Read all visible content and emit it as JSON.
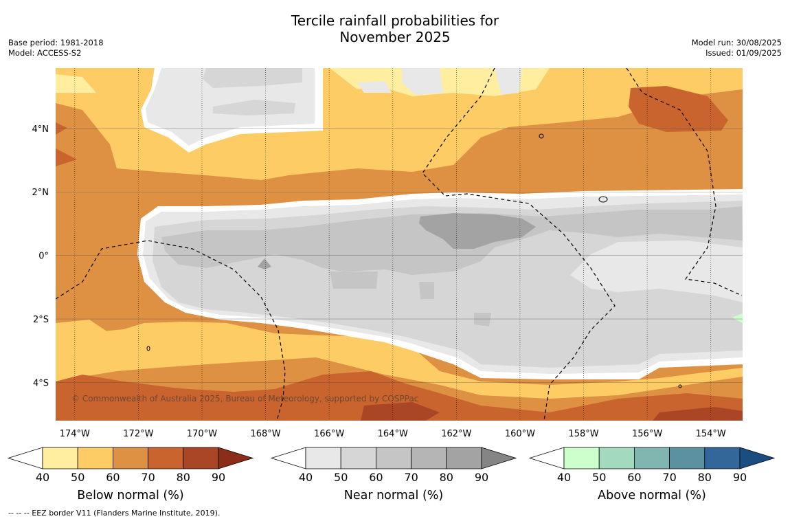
{
  "title_line1": "Tercile rainfall probabilities for",
  "title_line2": "November 2025",
  "base_period": "Base period: 1981-2018",
  "model": "Model: ACCESS-S2",
  "model_run": "Model run: 30/08/2025",
  "issued": "Issued: 01/09/2025",
  "copyright": "© Commonwealth of Australia 2025, Bureau of Meteorology, supported by COSPPac",
  "footer": "-- -- -- EEZ border V11 (Flanders Marine Institute, 2019).",
  "map": {
    "lon_range": [
      -174.6,
      -153.0
    ],
    "lat_range": [
      -5.2,
      5.9
    ],
    "lon_ticks": [
      "174°W",
      "172°W",
      "170°W",
      "168°W",
      "166°W",
      "164°W",
      "162°W",
      "160°W",
      "158°W",
      "156°W",
      "154°W"
    ],
    "lat_ticks": [
      "4°N",
      "2°N",
      "0°",
      "2°S",
      "4°S"
    ],
    "gridlines": true
  },
  "colorbars": [
    {
      "title": "Below normal (%)",
      "tick_labels": [
        "40",
        "50",
        "60",
        "70",
        "80",
        "90"
      ],
      "colors": [
        "#ffffff",
        "#ffeda0",
        "#fecc65",
        "#de9143",
        "#c9642f",
        "#aa4626",
        "#8c2d1a"
      ]
    },
    {
      "title": "Near normal (%)",
      "tick_labels": [
        "40",
        "50",
        "60",
        "70",
        "80",
        "90"
      ],
      "colors": [
        "#ffffff",
        "#e8e8e8",
        "#d6d6d6",
        "#c5c5c5",
        "#b5b5b5",
        "#a3a3a3",
        "#858585"
      ]
    },
    {
      "title": "Above normal (%)",
      "tick_labels": [
        "40",
        "50",
        "60",
        "70",
        "80",
        "90"
      ],
      "colors": [
        "#ffffff",
        "#ccffcc",
        "#a3d9bd",
        "#80b5b0",
        "#5b91a0",
        "#336699",
        "#1a4d80"
      ]
    }
  ]
}
